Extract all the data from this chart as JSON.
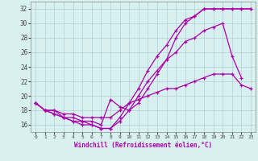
{
  "xlabel": "Windchill (Refroidissement éolien,°C)",
  "bg_color": "#d8f0f0",
  "grid_color": "#b8d4d4",
  "line_color": "#aa00aa",
  "xlim": [
    -0.5,
    23.5
  ],
  "ylim": [
    15.0,
    33.0
  ],
  "yticks": [
    16,
    18,
    20,
    22,
    24,
    26,
    28,
    30,
    32
  ],
  "xticks": [
    0,
    1,
    2,
    3,
    4,
    5,
    6,
    7,
    8,
    9,
    10,
    11,
    12,
    13,
    14,
    15,
    16,
    17,
    18,
    19,
    20,
    21,
    22,
    23
  ],
  "series": [
    {
      "x": [
        0,
        1,
        2,
        3,
        4,
        5,
        6,
        7,
        8,
        9,
        10,
        11,
        12,
        13,
        14,
        15,
        16,
        17,
        18,
        19,
        20,
        21,
        22,
        23
      ],
      "y": [
        19,
        18,
        17.5,
        17,
        16.5,
        16.5,
        16,
        15.5,
        15.5,
        16.5,
        18,
        20,
        22,
        23.5,
        25,
        28,
        30,
        31,
        32,
        32,
        32,
        32,
        32,
        32
      ]
    },
    {
      "x": [
        0,
        1,
        2,
        3,
        4,
        5,
        6,
        7,
        8,
        9,
        10,
        11,
        12,
        13,
        14,
        15,
        16,
        17,
        18,
        19,
        20,
        21,
        22,
        23
      ],
      "y": [
        19,
        18,
        17.5,
        17,
        16.5,
        16,
        16,
        15.5,
        15.5,
        17,
        19,
        21,
        23.5,
        25.5,
        27,
        29,
        30.5,
        31,
        32,
        32,
        32,
        32,
        32,
        32
      ]
    },
    {
      "x": [
        0,
        1,
        2,
        3,
        4,
        5,
        6,
        7,
        8,
        9,
        10,
        11,
        12,
        13,
        14,
        15,
        16,
        17,
        18,
        19,
        20,
        21,
        22,
        23
      ],
      "y": [
        19,
        18,
        18,
        17,
        17,
        16.5,
        16.5,
        16,
        19.5,
        18.5,
        18,
        19,
        21,
        23,
        25,
        26,
        27.5,
        28,
        29,
        29.5,
        30,
        25.5,
        22.5,
        null
      ]
    },
    {
      "x": [
        0,
        1,
        2,
        3,
        4,
        5,
        6,
        7,
        8,
        9,
        10,
        11,
        12,
        13,
        14,
        15,
        16,
        17,
        18,
        19,
        20,
        21,
        22,
        23
      ],
      "y": [
        19,
        18,
        18,
        17.5,
        17.5,
        17,
        17,
        17,
        17,
        18,
        19,
        19.5,
        20,
        20.5,
        21,
        21,
        21.5,
        22,
        22.5,
        23,
        23,
        23,
        21.5,
        21
      ]
    }
  ]
}
